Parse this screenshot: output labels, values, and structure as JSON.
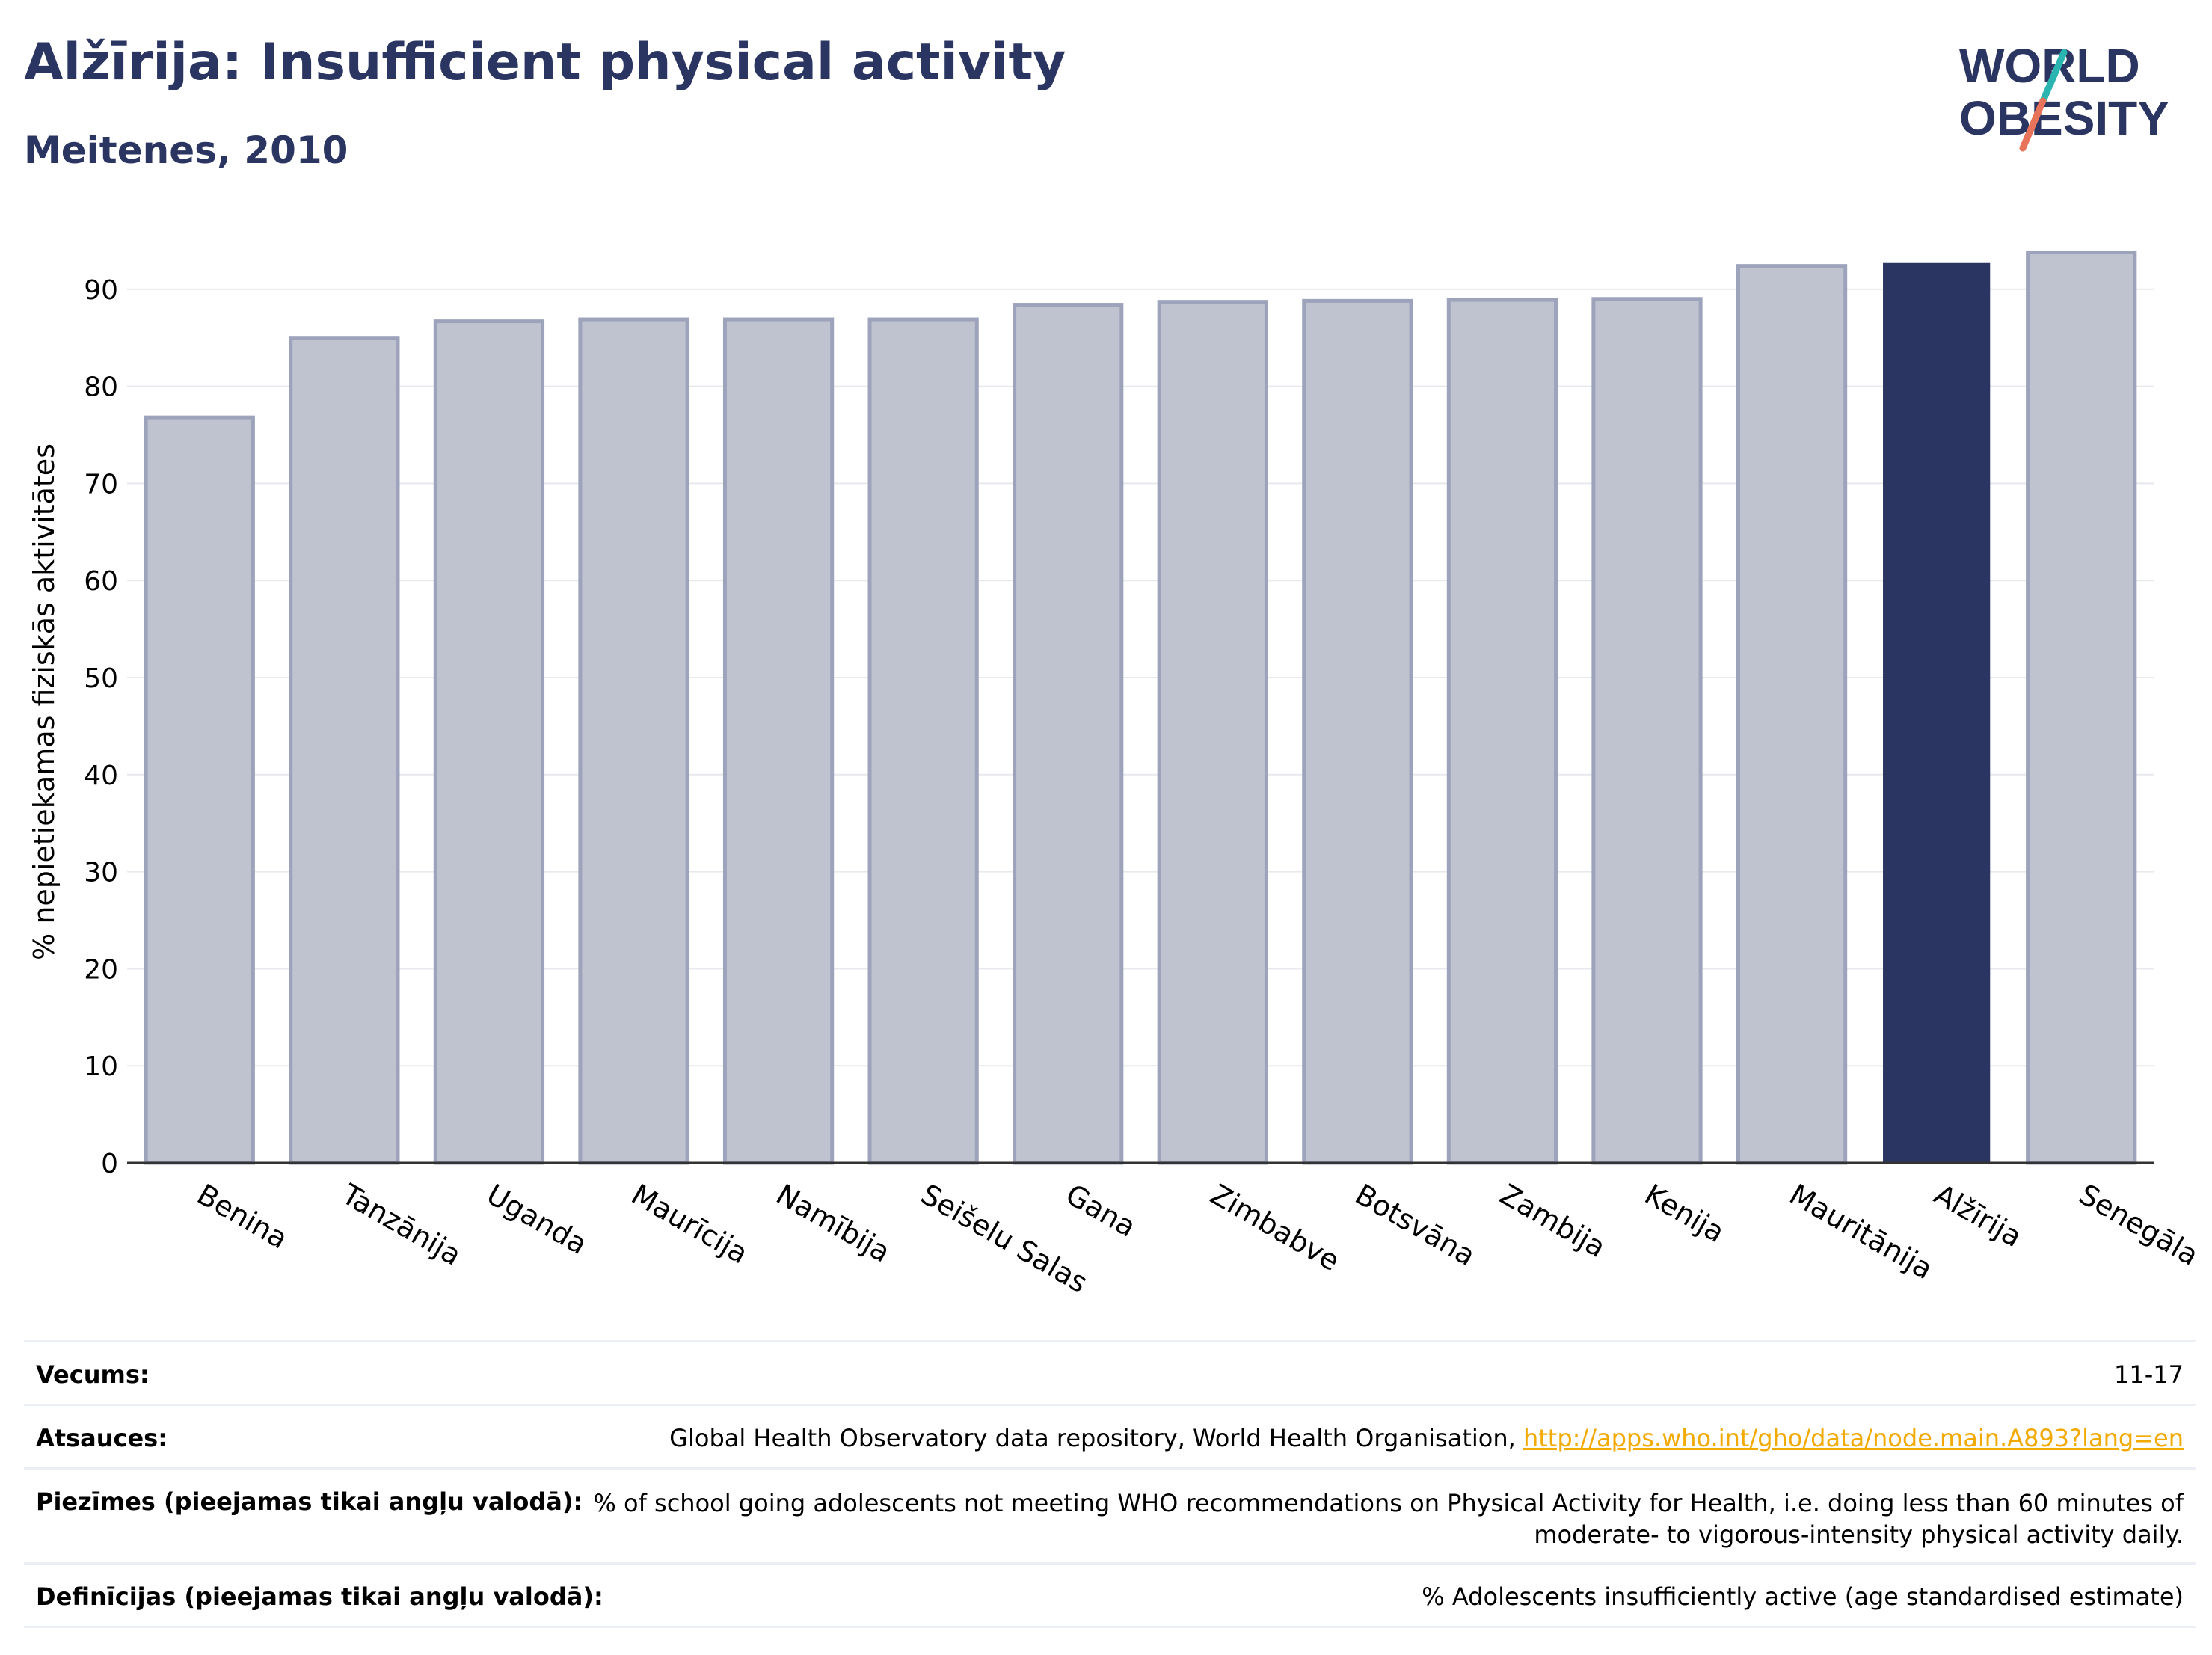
{
  "header": {
    "title": "Alžīrija: Insufficient physical activity",
    "subtitle": "Meitenes, 2010"
  },
  "logo": {
    "line1": "WORLD",
    "line2": "OBESITY"
  },
  "colors": {
    "bar": "#bfc3d0",
    "bar_stroke": "#9da3bb",
    "highlight": "#2b3561",
    "grid": "#e8e9ee",
    "title": "#2b3561",
    "link": "#f2a900",
    "logo_teal": "#2bb5b0",
    "logo_coral": "#e8735a"
  },
  "chart_data": {
    "type": "bar",
    "ylabel": "% nepietiekamas fiziskās aktivitātes",
    "ylim": [
      0,
      95
    ],
    "yticks": [
      0,
      10,
      20,
      30,
      40,
      50,
      60,
      70,
      80,
      90
    ],
    "grid": true,
    "categories": [
      "Benina",
      "Tanzānija",
      "Uganda",
      "Maurīcija",
      "Namībija",
      "Seišelu Salas",
      "Gana",
      "Zimbabve",
      "Botsvāna",
      "Zambija",
      "Kenija",
      "Mauritānija",
      "Alžīrija",
      "Senegāla"
    ],
    "values": [
      76.8,
      85.0,
      86.7,
      86.9,
      86.9,
      86.9,
      88.4,
      88.7,
      88.8,
      88.9,
      89.0,
      92.4,
      92.7,
      93.8
    ],
    "highlight": "Alžīrija"
  },
  "footer": {
    "age_label": "Vecums:",
    "age_value": "11-17",
    "refs_label": "Atsauces:",
    "refs_text": "Global Health Observatory data repository, World Health Organisation, ",
    "refs_link": "http://apps.who.int/gho/data/node.main.A893?lang=en",
    "notes_label": "Piezīmes (pieejamas tikai angļu valodā):",
    "notes_line1": "% of school going adolescents not meeting WHO recommendations on Physical Activity for Health, i.e. doing less than 60 minutes of",
    "notes_line2": "moderate- to vigorous-intensity physical activity daily.",
    "defs_label": "Definīcijas (pieejamas tikai angļu valodā):",
    "defs_value": "% Adolescents insufficiently active (age standardised estimate)"
  }
}
